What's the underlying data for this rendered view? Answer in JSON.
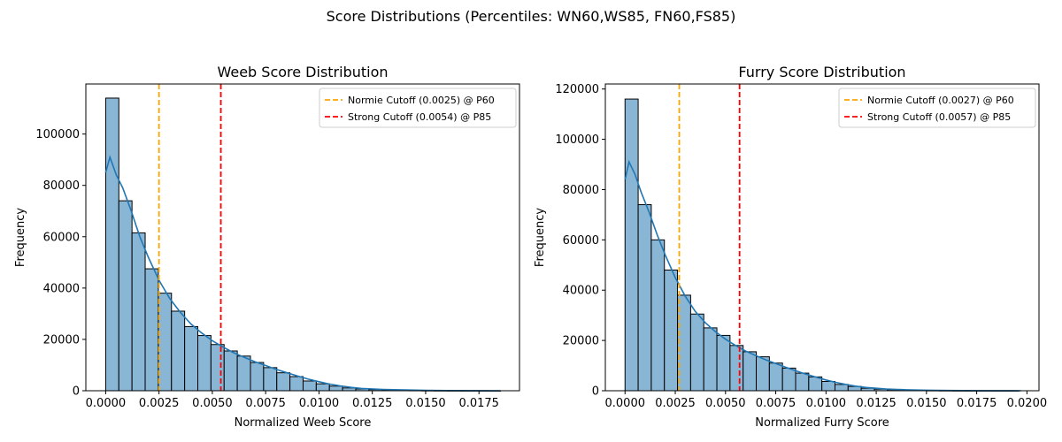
{
  "figure": {
    "suptitle": "Score Distributions (Percentiles: WN60,WS85, FN60,FS85)"
  },
  "chart_data": [
    {
      "type": "histogram",
      "title": "Weeb Score Distribution",
      "xlabel": "Normalized Weeb Score",
      "ylabel": "Frequency",
      "xlim": [
        -0.00093,
        0.0194
      ],
      "ylim": [
        0,
        119500
      ],
      "xticks": [
        0.0,
        0.0025,
        0.005,
        0.0075,
        0.01,
        0.0125,
        0.015,
        0.0175
      ],
      "xtick_labels": [
        "0.0000",
        "0.0025",
        "0.0050",
        "0.0075",
        "0.0100",
        "0.0125",
        "0.0150",
        "0.0175"
      ],
      "yticks": [
        0,
        20000,
        40000,
        60000,
        80000,
        100000
      ],
      "ytick_labels": [
        "0",
        "20000",
        "40000",
        "60000",
        "80000",
        "100000"
      ],
      "bin_start": 0.0,
      "bin_width": 0.000617,
      "bins": [
        114000,
        74000,
        61500,
        47500,
        38000,
        31000,
        25000,
        21500,
        18000,
        15500,
        13500,
        11000,
        9000,
        7000,
        5500,
        3800,
        2700,
        1800,
        1100,
        700,
        450,
        300,
        200,
        150,
        100,
        70,
        50,
        30,
        20,
        10
      ],
      "kde": {
        "x": [
          0.0,
          0.0002,
          0.0005,
          0.0008,
          0.0012,
          0.0016,
          0.002,
          0.0025,
          0.003,
          0.0035,
          0.004,
          0.0045,
          0.005,
          0.0055,
          0.006,
          0.0065,
          0.007,
          0.0075,
          0.008,
          0.0085,
          0.009,
          0.0095,
          0.01,
          0.0105,
          0.011,
          0.0115,
          0.012,
          0.013,
          0.014,
          0.015,
          0.016,
          0.0175,
          0.0185
        ],
        "y": [
          85000,
          91000,
          84000,
          79000,
          70000,
          60000,
          52000,
          43000,
          36000,
          30500,
          26000,
          22500,
          19500,
          17000,
          14800,
          13000,
          11300,
          9800,
          8300,
          7000,
          5700,
          4500,
          3500,
          2600,
          1900,
          1300,
          900,
          500,
          300,
          150,
          80,
          20,
          0
        ]
      },
      "vlines": [
        {
          "x": 0.0025,
          "color": "#ffa500",
          "label": "Normie Cutoff (0.0025) @ P60"
        },
        {
          "x": 0.0054,
          "color": "#ff0000",
          "label": "Strong Cutoff (0.0054) @ P85"
        }
      ],
      "bar_fill": "#8ab6d6",
      "kde_color": "#1f77b4",
      "legend_position": "upper right"
    },
    {
      "type": "histogram",
      "title": "Furry Score Distribution",
      "xlabel": "Normalized Furry Score",
      "ylabel": "Frequency",
      "xlim": [
        -0.00098,
        0.0206
      ],
      "ylim": [
        0,
        122000
      ],
      "xticks": [
        0.0,
        0.0025,
        0.005,
        0.0075,
        0.01,
        0.0125,
        0.015,
        0.0175,
        0.02
      ],
      "xtick_labels": [
        "0.0000",
        "0.0025",
        "0.0050",
        "0.0075",
        "0.0100",
        "0.0125",
        "0.0150",
        "0.0175",
        "0.0200"
      ],
      "yticks": [
        0,
        20000,
        40000,
        60000,
        80000,
        100000,
        120000
      ],
      "ytick_labels": [
        "0",
        "20000",
        "40000",
        "60000",
        "80000",
        "100000",
        "120000"
      ],
      "bin_start": 0.0,
      "bin_width": 0.000653,
      "bins": [
        116000,
        74000,
        60000,
        48000,
        38000,
        30500,
        25000,
        22000,
        18000,
        15500,
        13500,
        11000,
        9000,
        7000,
        5500,
        3700,
        2500,
        1700,
        1000,
        650,
        420,
        280,
        190,
        130,
        90,
        60,
        40,
        25,
        15,
        10
      ],
      "kde": {
        "x": [
          0.0,
          0.0002,
          0.0005,
          0.0008,
          0.0012,
          0.0016,
          0.002,
          0.0025,
          0.003,
          0.0035,
          0.004,
          0.0045,
          0.005,
          0.0055,
          0.006,
          0.0065,
          0.007,
          0.0075,
          0.008,
          0.0085,
          0.009,
          0.0095,
          0.01,
          0.0105,
          0.011,
          0.0115,
          0.012,
          0.013,
          0.014,
          0.015,
          0.016,
          0.0175,
          0.0197
        ],
        "y": [
          84000,
          91000,
          86000,
          79000,
          71000,
          62000,
          54000,
          45000,
          37500,
          31500,
          27000,
          23500,
          20500,
          18000,
          15800,
          14000,
          12300,
          10800,
          9300,
          7900,
          6600,
          5400,
          4300,
          3300,
          2500,
          1800,
          1300,
          700,
          400,
          200,
          100,
          30,
          0
        ]
      },
      "vlines": [
        {
          "x": 0.0027,
          "color": "#ffa500",
          "label": "Normie Cutoff (0.0027) @ P60"
        },
        {
          "x": 0.0057,
          "color": "#ff0000",
          "label": "Strong Cutoff (0.0057) @ P85"
        }
      ],
      "bar_fill": "#8ab6d6",
      "kde_color": "#1f77b4",
      "legend_position": "upper right"
    }
  ]
}
